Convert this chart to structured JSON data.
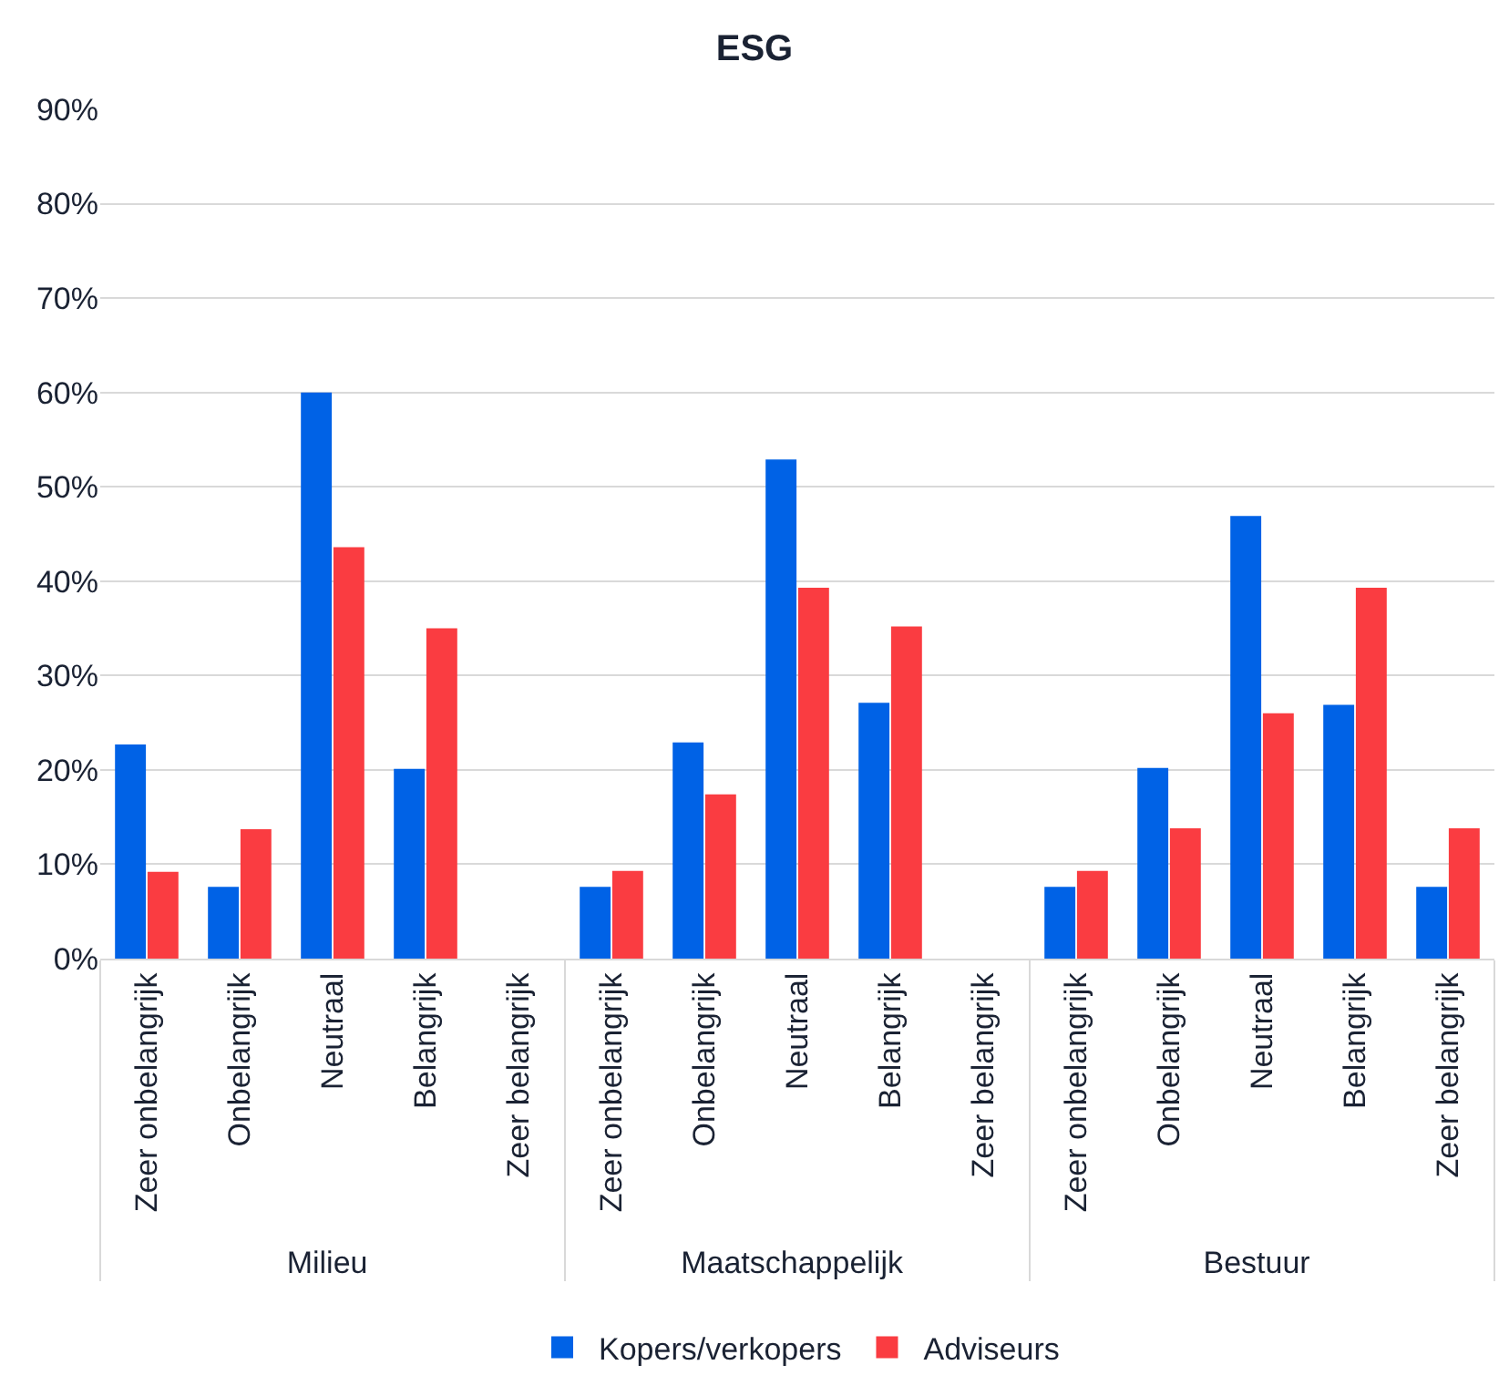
{
  "chart_data": {
    "type": "bar",
    "title": "ESG",
    "categories": [
      "Zeer onbelangrijk",
      "Onbelangrijk",
      "Neutraal",
      "Belangrijk",
      "Zeer belangrijk",
      "Zeer onbelangrijk",
      "Onbelangrijk",
      "Neutraal",
      "Belangrijk",
      "Zeer belangrijk",
      "Zeer onbelangrijk",
      "Onbelangrijk",
      "Neutraal",
      "Belangrijk",
      "Zeer belangrijk"
    ],
    "annotations": [
      "Milieu",
      "Maatschappelijk",
      "Bestuur"
    ],
    "series": [
      {
        "name": "Kopers/verkopers",
        "color": "#0062e6",
        "values": [
          22.7,
          7.6,
          60,
          20.1,
          0,
          7.6,
          22.9,
          52.9,
          27.1,
          0,
          7.6,
          20.2,
          46.9,
          26.9,
          7.6
        ]
      },
      {
        "name": "Adviseurs",
        "color": "#fa3c41",
        "values": [
          9.2,
          13.7,
          43.6,
          35,
          0,
          9.3,
          17.4,
          39.3,
          35.2,
          0,
          9.3,
          13.8,
          26,
          39.3,
          13.8
        ]
      }
    ],
    "ylim": [
      0,
      90
    ],
    "yticks": [
      {
        "value": 0,
        "label": "0%"
      },
      {
        "value": 10,
        "label": "10%"
      },
      {
        "value": 20,
        "label": "20%"
      },
      {
        "value": 30,
        "label": "30%"
      },
      {
        "value": 40,
        "label": "40%"
      },
      {
        "value": 50,
        "label": "50%"
      },
      {
        "value": 60,
        "label": "60%"
      },
      {
        "value": 70,
        "label": "70%"
      },
      {
        "value": 80,
        "label": "80%"
      },
      {
        "value": 90,
        "label": "90%"
      }
    ],
    "grid": "y",
    "legend": "bottom"
  }
}
